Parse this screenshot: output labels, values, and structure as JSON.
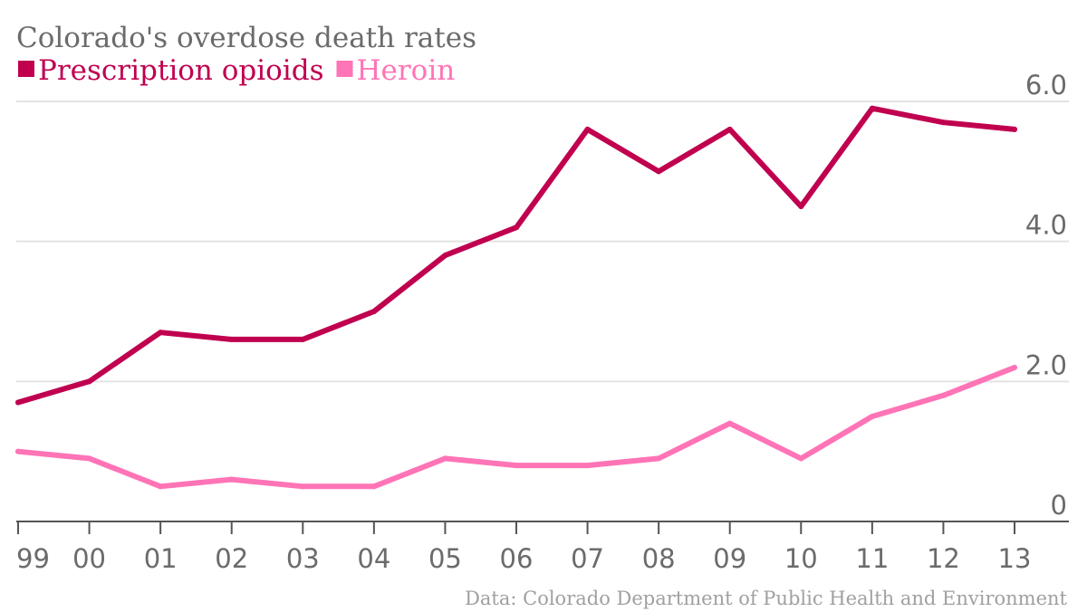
{
  "chart_data": {
    "type": "line",
    "title": "Colorado's overdose death rates",
    "categories": [
      "99",
      "00",
      "01",
      "02",
      "03",
      "04",
      "05",
      "06",
      "07",
      "08",
      "09",
      "10",
      "11",
      "12",
      "13"
    ],
    "series": [
      {
        "name": "Prescription opioids",
        "color": "#c0004f",
        "values": [
          1.7,
          2.0,
          2.7,
          2.6,
          2.6,
          3.0,
          3.8,
          4.2,
          5.6,
          5.0,
          5.6,
          4.5,
          5.9,
          5.7,
          5.6
        ]
      },
      {
        "name": "Heroin",
        "color": "#ff74b6",
        "values": [
          1.0,
          0.9,
          0.5,
          0.6,
          0.5,
          0.5,
          0.9,
          0.8,
          0.8,
          0.9,
          1.4,
          0.9,
          1.5,
          1.8,
          2.2
        ]
      }
    ],
    "y_ticks": [
      "0",
      "2.0",
      "4.0",
      "6.0"
    ],
    "y_tick_values": [
      0,
      2,
      4,
      6
    ],
    "ylim": [
      0,
      6
    ],
    "grid": true,
    "y_axis_side": "right",
    "legend_position": "top-left",
    "xlabel": "",
    "ylabel": "",
    "source": "Data: Colorado Department of Public Health and Environment"
  }
}
